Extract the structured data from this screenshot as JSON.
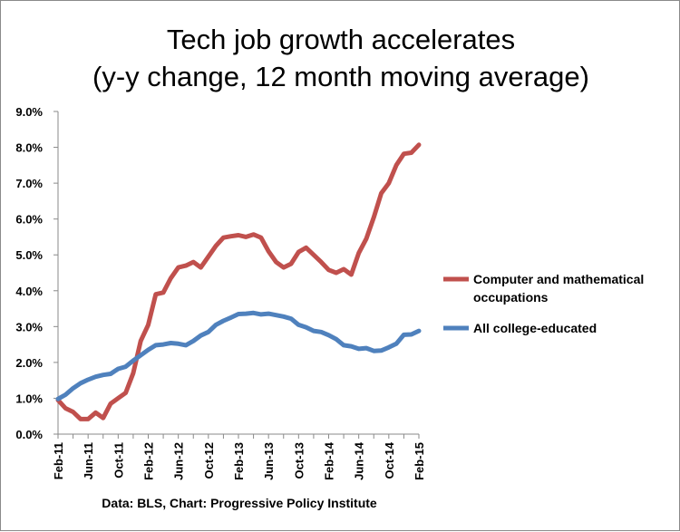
{
  "chart_data": {
    "type": "line",
    "title_lines": [
      "Tech job growth accelerates",
      "(y-y change, 12 month moving average)"
    ],
    "xlabel": "",
    "ylabel": "",
    "ylim": [
      0,
      9
    ],
    "y_ticks": [
      0,
      1,
      2,
      3,
      4,
      5,
      6,
      7,
      8,
      9
    ],
    "y_tick_labels": [
      "0.0%",
      "1.0%",
      "2.0%",
      "3.0%",
      "4.0%",
      "5.0%",
      "6.0%",
      "7.0%",
      "8.0%",
      "9.0%"
    ],
    "x_range": [
      0,
      48
    ],
    "x_ticks": [
      0,
      4,
      8,
      12,
      16,
      20,
      24,
      28,
      32,
      36,
      40,
      44,
      48
    ],
    "x_tick_labels": [
      "Feb-11",
      "Jun-11",
      "Oct-11",
      "Feb-12",
      "Jun-12",
      "Oct-12",
      "Feb-13",
      "Jun-13",
      "Oct-13",
      "Feb-14",
      "Jun-14",
      "Oct-14",
      "Feb-15"
    ],
    "series": [
      {
        "name": "Computer and mathematical occupations",
        "legend_lines": [
          "Computer and mathematical",
          "occupations"
        ],
        "color": "#c0504d",
        "values": [
          0.95,
          0.72,
          0.62,
          0.42,
          0.42,
          0.6,
          0.45,
          0.85,
          1.0,
          1.15,
          1.7,
          2.6,
          3.05,
          3.9,
          3.95,
          4.35,
          4.65,
          4.7,
          4.8,
          4.65,
          4.95,
          5.25,
          5.48,
          5.52,
          5.55,
          5.5,
          5.57,
          5.48,
          5.1,
          4.8,
          4.65,
          4.75,
          5.08,
          5.2,
          5.0,
          4.8,
          4.58,
          4.5,
          4.6,
          4.45,
          5.05,
          5.45,
          6.05,
          6.72,
          7.0,
          7.5,
          7.82,
          7.85,
          8.07
        ]
      },
      {
        "name": "All college-educated",
        "legend_lines": [
          "All college-educated"
        ],
        "color": "#4f81bd",
        "values": [
          0.98,
          1.1,
          1.28,
          1.42,
          1.52,
          1.6,
          1.65,
          1.68,
          1.82,
          1.88,
          2.05,
          2.2,
          2.35,
          2.48,
          2.5,
          2.54,
          2.52,
          2.48,
          2.6,
          2.75,
          2.85,
          3.05,
          3.16,
          3.25,
          3.35,
          3.36,
          3.38,
          3.34,
          3.36,
          3.32,
          3.28,
          3.22,
          3.05,
          2.98,
          2.88,
          2.85,
          2.76,
          2.65,
          2.48,
          2.45,
          2.38,
          2.4,
          2.32,
          2.33,
          2.42,
          2.52,
          2.77,
          2.78,
          2.88
        ]
      }
    ]
  },
  "source": "Data: BLS, Chart: Progressive Policy Institute"
}
